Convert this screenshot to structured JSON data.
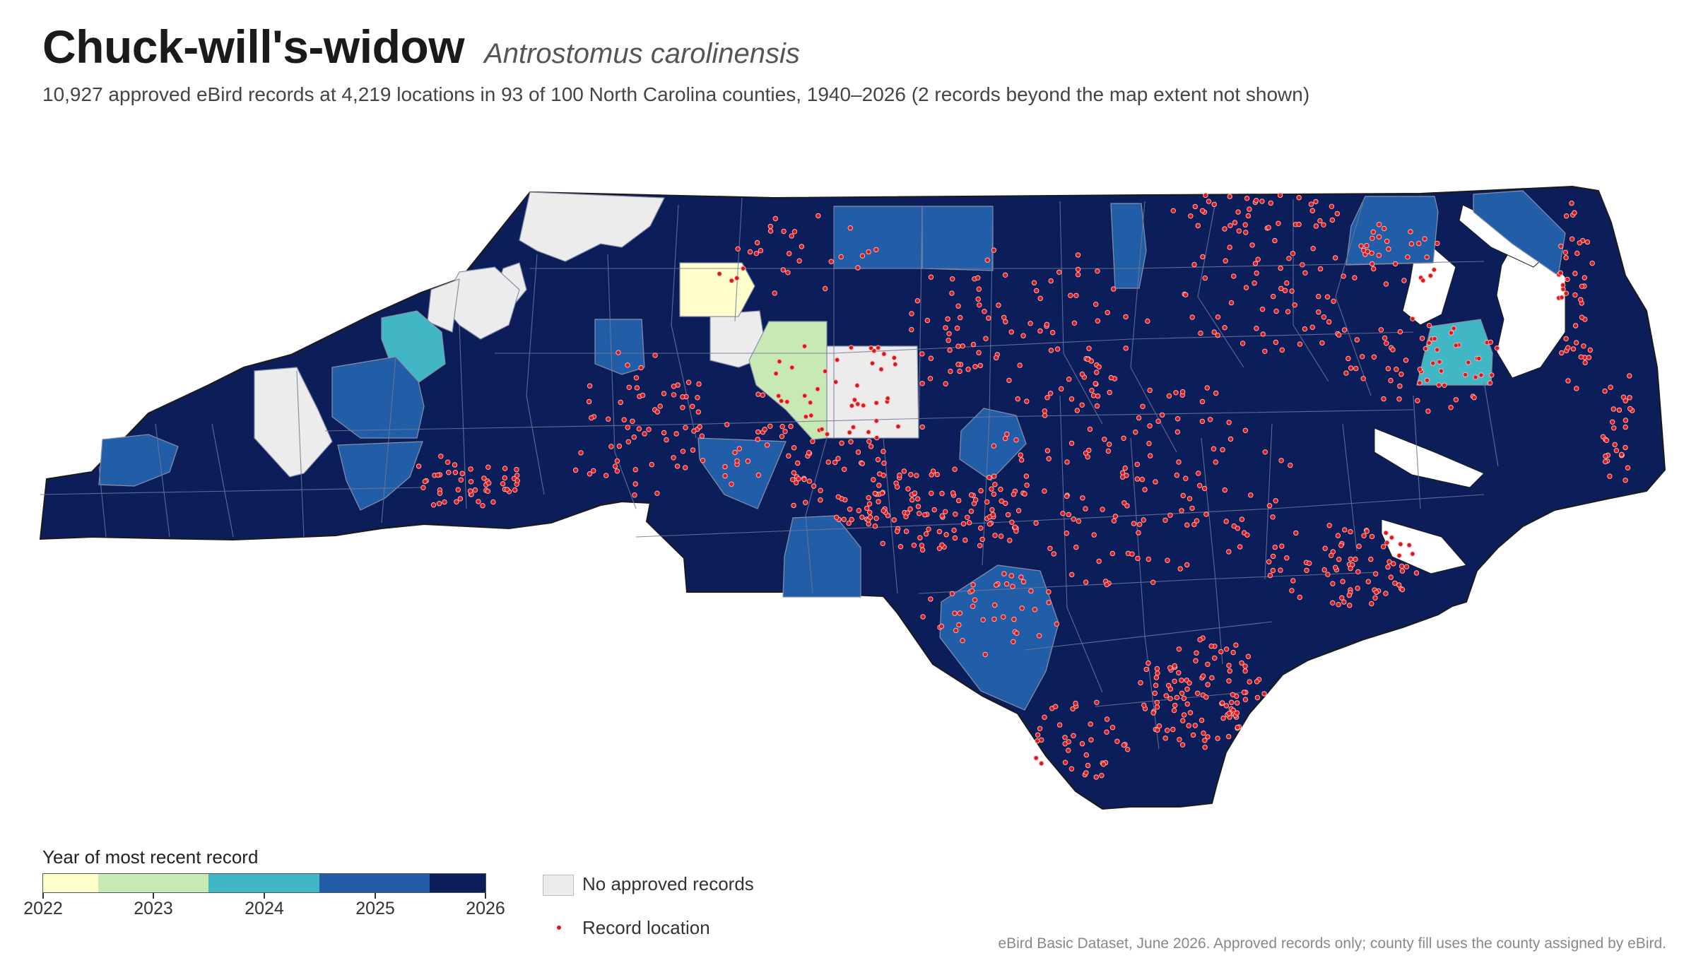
{
  "header": {
    "title": "Chuck-will's-widow",
    "scientific_name": "Antrostomus carolinensis",
    "subtitle": "10,927 approved eBird records at 4,219 locations in 93 of 100 North Carolina counties, 1940–2026 (2 records beyond the map extent not shown)"
  },
  "legend": {
    "title": "Year of most recent record",
    "ticks": [
      "2022",
      "2023",
      "2024",
      "2025",
      "2026"
    ],
    "colors": [
      "#ffffcc",
      "#c7e9b4",
      "#41b6c4",
      "#225ea8",
      "#0c1e5a"
    ],
    "no_records_label": "No approved records",
    "no_records_color": "#ececec",
    "record_label": "Record location",
    "record_color": "#d7191c"
  },
  "source": "eBird Basic Dataset, June 2026. Approved records only; county fill uses the county assigned by eBird.",
  "map": {
    "state": "North Carolina",
    "counties": [
      {
        "fill_year": "none"
      },
      {
        "fill_year": "none"
      },
      {
        "fill_year": "none"
      },
      {
        "fill_year": "none"
      },
      {
        "fill_year": "none"
      },
      {
        "fill_year": "none"
      },
      {
        "fill_year": "none"
      },
      {
        "fill_year": "2022"
      },
      {
        "fill_year": "2023"
      },
      {
        "fill_year": "2024"
      },
      {
        "fill_year": "2024"
      },
      {
        "fill_year": "2025"
      },
      {
        "fill_year": "2025"
      },
      {
        "fill_year": "2025"
      },
      {
        "fill_year": "2025"
      },
      {
        "fill_year": "2025"
      },
      {
        "fill_year": "2025"
      },
      {
        "fill_year": "2025"
      },
      {
        "fill_year": "2025"
      },
      {
        "fill_year": "2025"
      },
      {
        "fill_year": "2025"
      },
      {
        "fill_year": "2025"
      },
      {
        "fill_year": "2025"
      }
    ],
    "other_counties_year": "2026"
  }
}
